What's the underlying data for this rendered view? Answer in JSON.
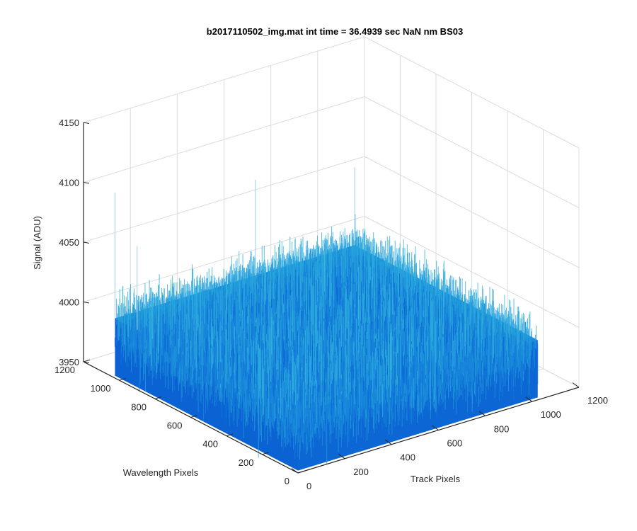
{
  "chart_data": {
    "type": "surface",
    "title": "b2017110502_img.mat int time = 36.4939 sec  NaN nm BS03",
    "xlabel": "Track Pixels",
    "ylabel": "Wavelength Pixels",
    "zlabel": "Signal (ADU)",
    "xlim": [
      0,
      1200
    ],
    "ylim": [
      0,
      1200
    ],
    "zlim": [
      3950,
      4150
    ],
    "xticks": [
      "0",
      "200",
      "400",
      "600",
      "800",
      "1000",
      "1200"
    ],
    "yticks": [
      "0",
      "200",
      "400",
      "600",
      "800",
      "1000",
      "1200"
    ],
    "zticks": [
      "3950",
      "4000",
      "4050",
      "4100",
      "4150"
    ],
    "surface": {
      "x_extent": [
        0,
        1024
      ],
      "y_extent": [
        0,
        1024
      ],
      "mean_signal": 4000,
      "noise_range": [
        3960,
        4040
      ]
    },
    "grid": true,
    "colors": {
      "surface_low": "#0a5fd0",
      "surface_high": "#2aa8dc",
      "grid": "#dcdcdc",
      "axis": "#262626"
    }
  }
}
